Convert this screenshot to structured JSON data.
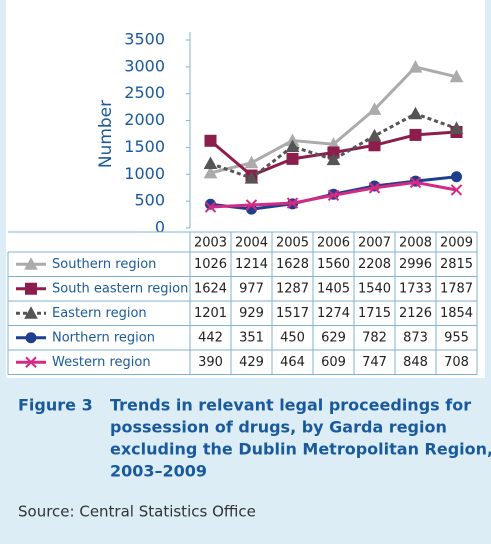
{
  "chart_data": {
    "type": "line",
    "y_label": "Number",
    "categories": [
      "2003",
      "2004",
      "2005",
      "2006",
      "2007",
      "2008",
      "2009"
    ],
    "ylim": [
      0,
      3500
    ],
    "yticks": [
      0,
      500,
      1000,
      1500,
      2000,
      2500,
      3000,
      3500
    ],
    "series": [
      {
        "name": "Southern region",
        "color": "#ababab",
        "marker": "triangle",
        "dash": false,
        "values": [
          1026,
          1214,
          1628,
          1560,
          2208,
          2996,
          2815
        ]
      },
      {
        "name": "South eastern region",
        "color": "#8c1d4c",
        "marker": "square",
        "dash": false,
        "values": [
          1624,
          977,
          1287,
          1405,
          1540,
          1733,
          1787
        ]
      },
      {
        "name": "Eastern region",
        "color": "#555555",
        "marker": "triangle",
        "dash": true,
        "values": [
          1201,
          929,
          1517,
          1274,
          1715,
          2126,
          1854
        ]
      },
      {
        "name": "Northern region",
        "color": "#1f3f8c",
        "marker": "circle",
        "dash": false,
        "values": [
          442,
          351,
          450,
          629,
          782,
          873,
          955
        ]
      },
      {
        "name": "Western region",
        "color": "#d42a84",
        "marker": "x",
        "dash": false,
        "values": [
          390,
          429,
          464,
          609,
          747,
          848,
          708
        ]
      }
    ]
  },
  "caption": {
    "label": "Figure 3",
    "lines": [
      "Trends in relevant legal proceedings for",
      "possession of drugs, by Garda region",
      "excluding the Dublin Metropolitan Region,",
      "2003–2009"
    ]
  },
  "source": "Source: Central Statistics Office"
}
